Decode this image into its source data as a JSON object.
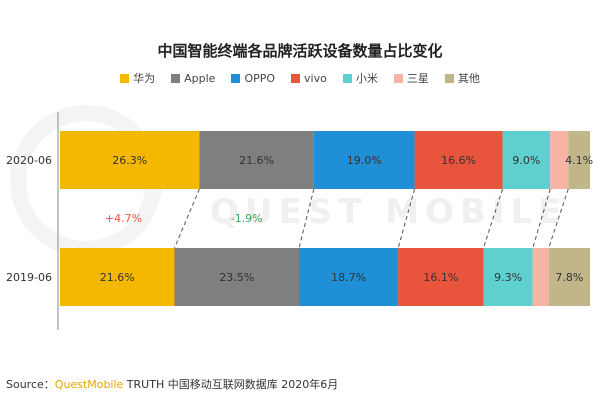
{
  "title": "中国智能终端各品牌活跃设备数量占比变化",
  "legend": [
    {
      "name": "华为",
      "color": "#f5b800"
    },
    {
      "name": "Apple",
      "color": "#7f7f7f"
    },
    {
      "name": "OPPO",
      "color": "#1f8fd6"
    },
    {
      "name": "vivo",
      "color": "#e8553c"
    },
    {
      "name": "小米",
      "color": "#5fd0d0"
    },
    {
      "name": "三星",
      "color": "#f7b3a3"
    },
    {
      "name": "其他",
      "color": "#c2b58a"
    }
  ],
  "chart_data": {
    "type": "bar",
    "stacked": "100%",
    "orientation": "horizontal",
    "title": "中国智能终端各品牌活跃设备数量占比变化",
    "categories": [
      "2020-06",
      "2019-06"
    ],
    "series": [
      {
        "name": "华为",
        "values": [
          26.3,
          21.6
        ],
        "labels": [
          "26.3%",
          "21.6%"
        ]
      },
      {
        "name": "Apple",
        "values": [
          21.6,
          23.5
        ],
        "labels": [
          "21.6%",
          "23.5%"
        ]
      },
      {
        "name": "OPPO",
        "values": [
          19.0,
          18.7
        ],
        "labels": [
          "19.0%",
          "18.7%"
        ]
      },
      {
        "name": "vivo",
        "values": [
          16.6,
          16.1
        ],
        "labels": [
          "16.6%",
          "16.1%"
        ]
      },
      {
        "name": "小米",
        "values": [
          9.0,
          9.3
        ],
        "labels": [
          "9.0%",
          "9.3%"
        ]
      },
      {
        "name": "三星",
        "values": [
          3.4,
          3.0
        ],
        "labels": [
          "",
          ""
        ]
      },
      {
        "name": "其他",
        "values": [
          4.1,
          7.8
        ],
        "labels": [
          "4.1%",
          "7.8%"
        ]
      }
    ],
    "annotations": [
      {
        "series": "华为",
        "text": "+4.7%",
        "color": "#e8553c"
      },
      {
        "series": "Apple",
        "text": "-1.9%",
        "color": "#3aa655"
      }
    ],
    "legend_position": "top",
    "grid": false
  },
  "source": {
    "prefix": "Source：",
    "brand": "QuestMobile",
    "suffix": " TRUTH 中国移动互联网数据库 2020年6月"
  },
  "watermark": "QUEST MOBILE"
}
